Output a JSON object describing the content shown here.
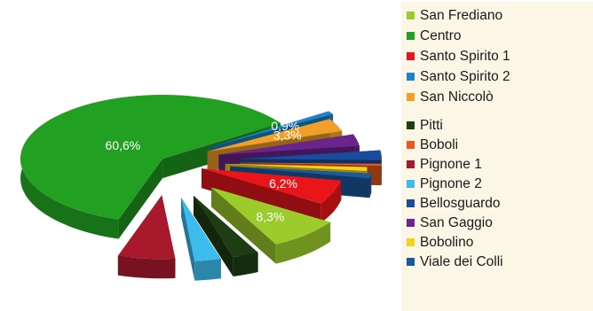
{
  "chart_data": {
    "type": "pie",
    "title": "",
    "slices": [
      {
        "label": "San Frediano",
        "value": 8.3,
        "color": "#9ccc2c",
        "value_label": "8,3%"
      },
      {
        "label": "Centro",
        "value": 60.6,
        "color": "#22a022",
        "value_label": "60,6%"
      },
      {
        "label": "Santo Spirito 1",
        "value": 6.2,
        "color": "#e8161b",
        "value_label": "6,2%"
      },
      {
        "label": "Santo Spirito 2",
        "value": 0.9,
        "color": "#1c84c8",
        "value_label": "0,9%"
      },
      {
        "label": "San Niccolò",
        "value": 3.3,
        "color": "#f0a028",
        "value_label": "3,3%"
      },
      {
        "label": "Pitti",
        "value": 3.0,
        "color": "#1e3d14"
      },
      {
        "label": "Boboli",
        "value": 0.5,
        "color": "#e85a1e"
      },
      {
        "label": "Pignone 1",
        "value": 6.5,
        "color": "#a8192c"
      },
      {
        "label": "Pignone 2",
        "value": 3.0,
        "color": "#3cbcec"
      },
      {
        "label": "Bellosguardo",
        "value": 2.5,
        "color": "#1a4b9c"
      },
      {
        "label": "San Gaggio",
        "value": 3.0,
        "color": "#6a248c"
      },
      {
        "label": "Bobolino",
        "value": 1.0,
        "color": "#f2d21c"
      },
      {
        "label": "Viale dei Colli",
        "value": 1.2,
        "color": "#1a5aa0"
      }
    ],
    "legend_position": "right",
    "style": "exploded 3d pie"
  }
}
